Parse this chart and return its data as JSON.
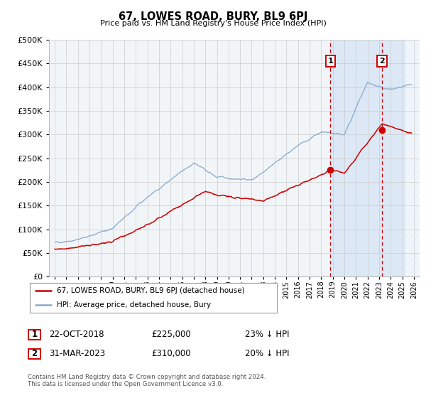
{
  "title": "67, LOWES ROAD, BURY, BL9 6PJ",
  "subtitle": "Price paid vs. HM Land Registry's House Price Index (HPI)",
  "red_label": "67, LOWES ROAD, BURY, BL9 6PJ (detached house)",
  "blue_label": "HPI: Average price, detached house, Bury",
  "event1_label": "1",
  "event1_date": "22-OCT-2018",
  "event1_price": "£225,000",
  "event1_hpi": "23% ↓ HPI",
  "event1_year": 2018.8,
  "event1_value": 225000,
  "event2_label": "2",
  "event2_date": "31-MAR-2023",
  "event2_price": "£310,000",
  "event2_hpi": "20% ↓ HPI",
  "event2_year": 2023.25,
  "event2_value": 310000,
  "footer1": "Contains HM Land Registry data © Crown copyright and database right 2024.",
  "footer2": "This data is licensed under the Open Government Licence v3.0.",
  "ylim": [
    0,
    500000
  ],
  "yticks": [
    0,
    50000,
    100000,
    150000,
    200000,
    250000,
    300000,
    350000,
    400000,
    450000,
    500000
  ],
  "xlim_start": 1995,
  "xlim_end": 2026,
  "red_color": "#cc0000",
  "blue_color": "#88aacc",
  "bg_color": "#f2f5f8",
  "highlight_bg": "#dce8f5",
  "vline_color": "#cc0000",
  "grid_color": "#cccccc",
  "hatch_color": "#cccccc"
}
